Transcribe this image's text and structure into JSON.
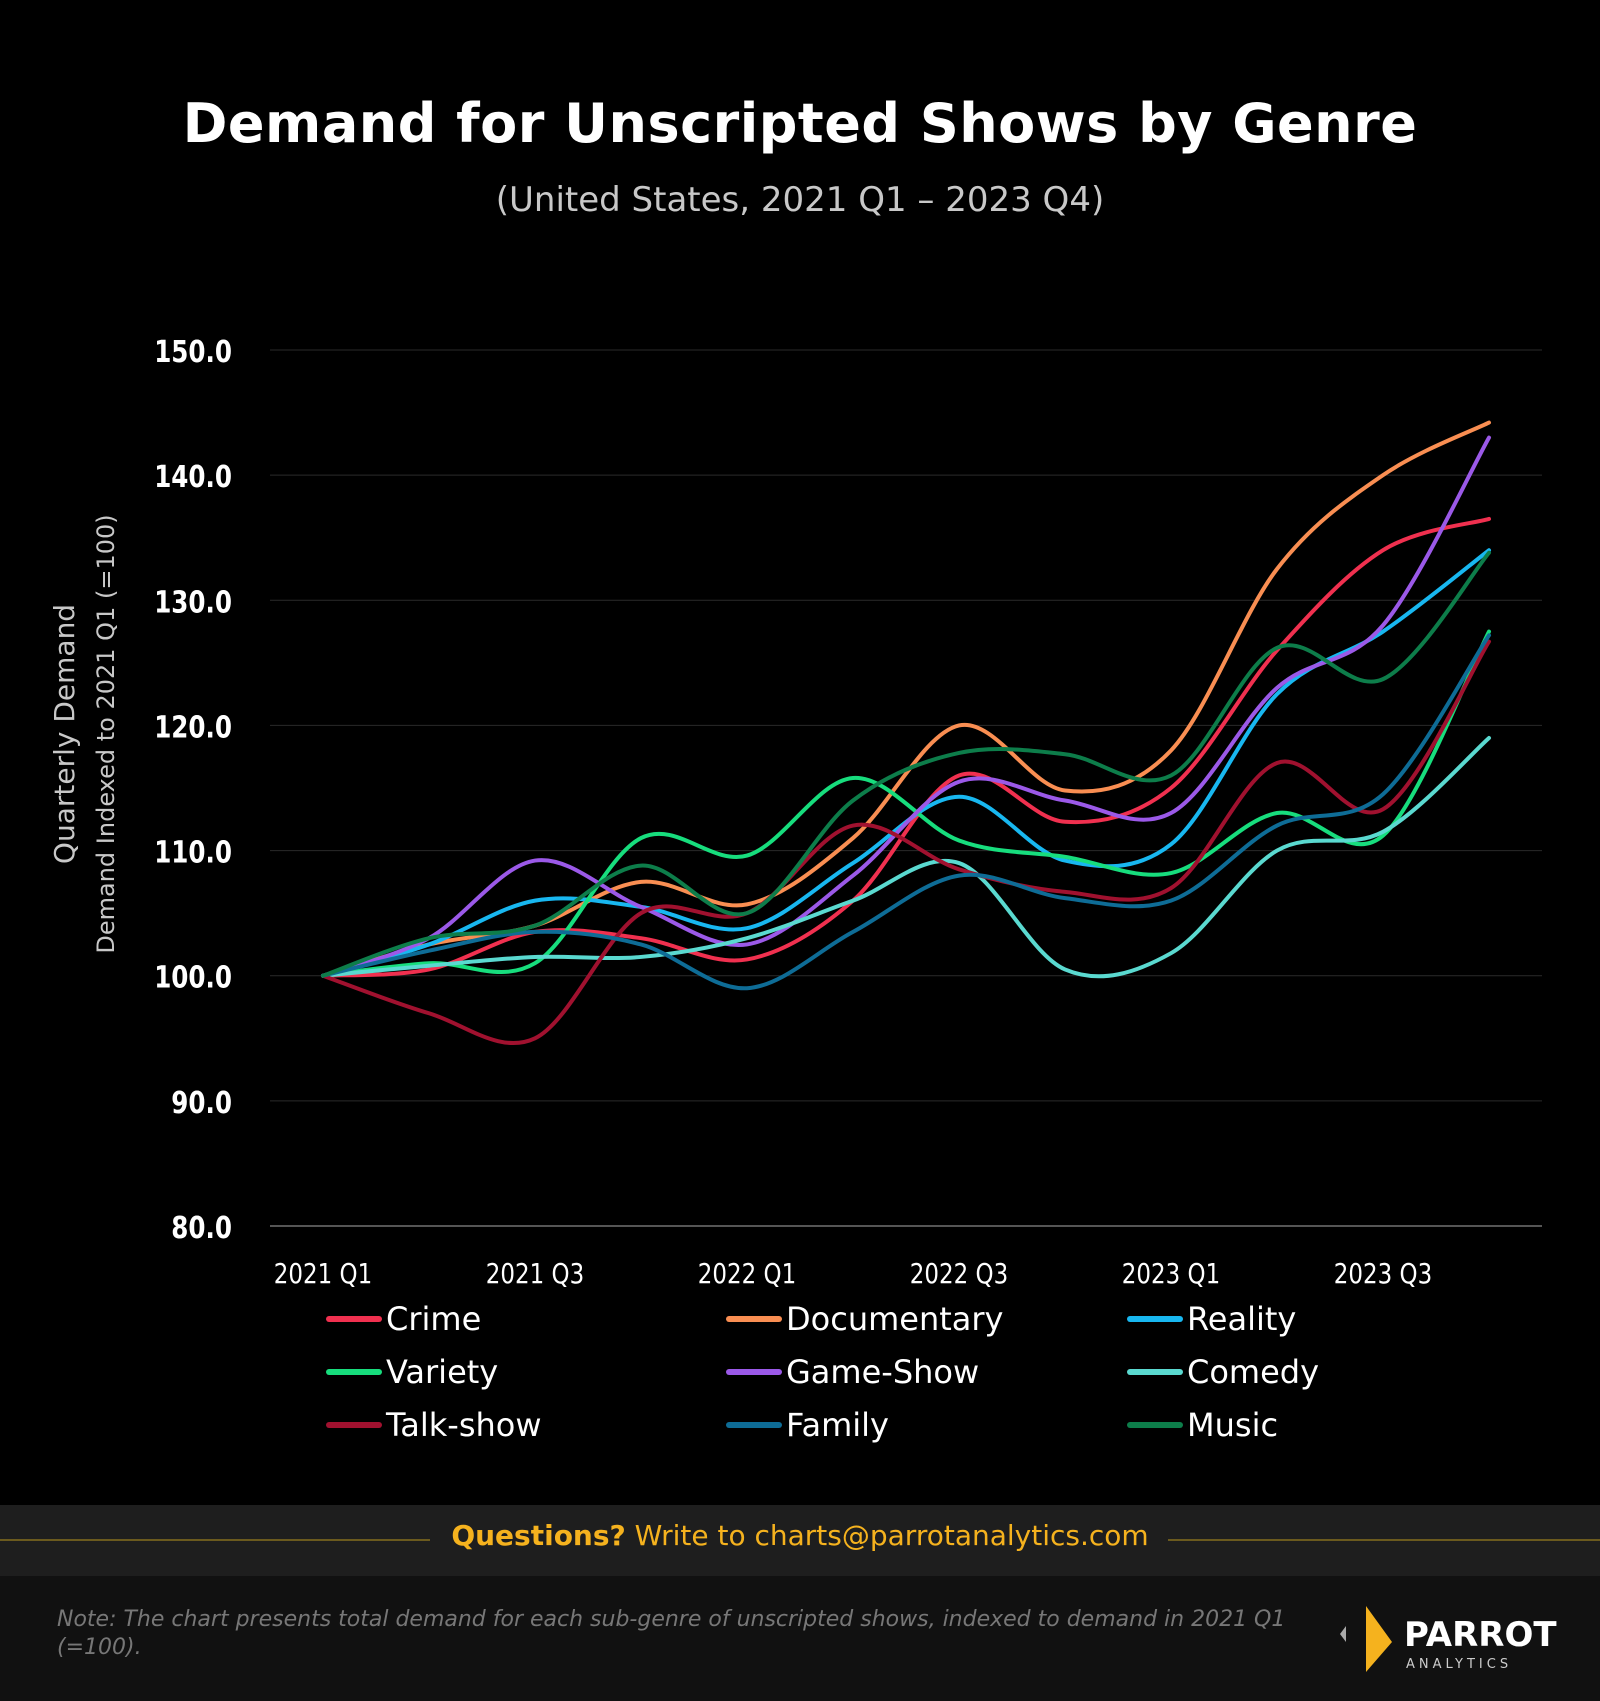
{
  "title": "Demand for Unscripted Shows by Genre",
  "subtitle": "(United States,  2021 Q1 – 2023 Q4)",
  "chart_data": {
    "type": "line",
    "title": "Demand for Unscripted Shows by Genre",
    "subtitle": "(United States,  2021 Q1 – 2023 Q4)",
    "ylabel": "Quarterly Demand",
    "ylabel2": "Demand Indexed to  2021 Q1 (=100)",
    "ylim": [
      80,
      150
    ],
    "yticks": [
      "80.0",
      "90.0",
      "100.0",
      "110.0",
      "120.0",
      "130.0",
      "140.0",
      "150.0"
    ],
    "x": [
      "2021 Q1",
      "2021 Q2",
      "2021 Q3",
      "2021 Q4",
      "2022 Q1",
      "2022 Q2",
      "2022 Q3",
      "2022 Q4",
      "2023 Q1",
      "2023 Q2",
      "2023 Q3",
      "2023 Q4"
    ],
    "xticks": [
      "2021 Q1",
      "2021 Q3",
      "2022 Q1",
      "2022 Q3",
      "2023 Q1",
      "2023 Q3"
    ],
    "grid": true,
    "legend_position": "bottom",
    "series": [
      {
        "name": "Crime",
        "color": "#f0304f",
        "values": [
          100,
          100.5,
          103.5,
          103,
          101.3,
          106,
          116,
          112.3,
          115,
          126,
          134,
          136.5
        ]
      },
      {
        "name": "Documentary",
        "color": "#f98e52",
        "values": [
          100,
          102.5,
          104,
          107.5,
          105.7,
          111,
          120,
          114.8,
          118,
          132.5,
          140,
          144.2
        ]
      },
      {
        "name": "Reality",
        "color": "#18b7f0",
        "values": [
          100,
          102.5,
          106,
          105.5,
          103.8,
          109,
          114.3,
          109.2,
          110.5,
          122.5,
          127.5,
          134
        ]
      },
      {
        "name": "Variety",
        "color": "#17dd7d",
        "values": [
          100,
          101,
          101,
          111,
          109.6,
          115.8,
          110.8,
          109.5,
          108.2,
          113,
          111.2,
          127.5
        ]
      },
      {
        "name": "Game-Show",
        "color": "#9b59e8",
        "values": [
          100,
          103,
          109.2,
          105.5,
          102.5,
          108,
          115.5,
          114,
          113,
          123,
          128,
          143
        ]
      },
      {
        "name": "Comedy",
        "color": "#5ad9d0",
        "values": [
          100,
          100.8,
          101.5,
          101.5,
          103,
          106,
          109,
          100.5,
          101.8,
          110,
          111.5,
          119
        ]
      },
      {
        "name": "Talk-show",
        "color": "#a0112f",
        "values": [
          100,
          97,
          95,
          105,
          105,
          112,
          108.5,
          106.7,
          107,
          117,
          113.3,
          126.7
        ]
      },
      {
        "name": "Family",
        "color": "#0e6c96",
        "values": [
          100,
          102,
          103.5,
          102.5,
          99,
          103.5,
          108,
          106.2,
          106,
          112,
          114.5,
          127.2
        ]
      },
      {
        "name": "Music",
        "color": "#0d7d4a",
        "values": [
          100,
          103,
          104,
          108.8,
          105,
          114,
          117.8,
          117.7,
          116,
          126.2,
          123.7,
          133.8
        ]
      }
    ]
  },
  "footer": {
    "question_bold": "Questions?",
    "question_rest": " Write to charts@parrotanalytics.com",
    "note": "Note: The chart presents total demand for each sub-genre of unscripted shows, indexed to demand in 2021 Q1 (=100).",
    "logo_text": "PARROT",
    "logo_sub": "ANALYTICS",
    "accent": "#f5b21e"
  }
}
